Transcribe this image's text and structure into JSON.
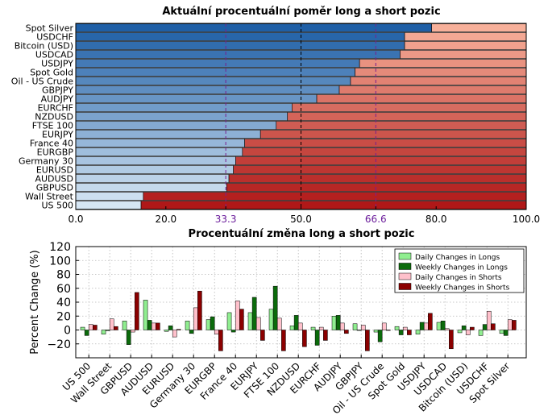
{
  "colors": {
    "long_dark": "#1f5fa6",
    "long_light": "#d6e6f4",
    "short_light": "#f7b09a",
    "short_dark": "#b01818",
    "ref_line_purple": "#7a1f8f",
    "ref_label_purple": "#6a1b9a",
    "daily_longs": "#90ee90",
    "weekly_longs": "#0b6b0b",
    "daily_shorts": "#ffc0cb",
    "weekly_shorts": "#8b0000"
  },
  "chart_data": [
    {
      "type": "bar",
      "orientation": "horizontal-stacked",
      "title": "Aktuální procentuální poměr long a short pozic",
      "categories": [
        "Spot Silver",
        "USDCHF",
        "Bitcoin (USD)",
        "USDCAD",
        "USDJPY",
        "Spot Gold",
        "Oil - US Crude",
        "GBPJPY",
        "AUDJPY",
        "EURCHF",
        "NZDUSD",
        "FTSE 100",
        "EURJPY",
        "France 40",
        "EURGBP",
        "Germany 30",
        "EURUSD",
        "AUDUSD",
        "GBPUSD",
        "Wall Street",
        "US 500"
      ],
      "series": [
        {
          "values": [
            79.0,
            73.0,
            73.0,
            72.0,
            63.0,
            62.0,
            61.0,
            58.5,
            53.5,
            48.0,
            47.0,
            44.5,
            41.0,
            37.5,
            37.0,
            35.5,
            35.0,
            34.0,
            33.5,
            15.0,
            14.5
          ]
        },
        {
          "values": [
            21.0,
            27.0,
            27.0,
            28.0,
            37.0,
            38.0,
            39.0,
            41.5,
            46.5,
            52.0,
            53.0,
            55.5,
            59.0,
            62.5,
            63.0,
            64.5,
            65.0,
            66.0,
            66.5,
            85.0,
            85.5
          ]
        }
      ],
      "xlim": [
        0,
        100
      ],
      "xticks": [
        "0.0",
        "20.0",
        "33.3",
        "50.0",
        "66.6",
        "80.0",
        "100.0"
      ],
      "reference_lines": [
        33.3,
        50.0,
        66.6
      ]
    },
    {
      "type": "bar",
      "title": "Procentuální změna long a short pozic",
      "ylabel": "Percent Change (%)",
      "ylim": [
        -40,
        120
      ],
      "yticks": [
        "120",
        "100",
        "80",
        "60",
        "40",
        "20",
        "0",
        "−20"
      ],
      "grid": true,
      "legend_position": "top-right",
      "categories": [
        "US 500",
        "Wall Street",
        "GBPUSD",
        "AUDUSD",
        "EURUSD",
        "Germany 30",
        "EURGBP",
        "France 40",
        "EURJPY",
        "FTSE 100",
        "NZDUSD",
        "EURCHF",
        "AUDJPY",
        "GBPJPY",
        "Oil - US Crude",
        "Spot Gold",
        "USDJPY",
        "USDCAD",
        "Bitcoin (USD)",
        "USDCHF",
        "Spot Silver"
      ],
      "series": [
        {
          "name": "Daily Changes in Longs",
          "values": [
            4,
            -6,
            13,
            43,
            -2,
            13,
            15,
            25,
            25,
            30,
            6,
            4,
            20,
            9,
            -3,
            5,
            -6,
            11,
            -4,
            -8,
            -5
          ]
        },
        {
          "name": "Weekly Changes in Longs",
          "values": [
            -8,
            -1,
            -21,
            14,
            6,
            -5,
            19,
            -3,
            47,
            63,
            21,
            -22,
            21,
            0,
            -17,
            -7,
            11,
            13,
            6,
            8,
            -8
          ]
        },
        {
          "name": "Daily Changes in Shorts",
          "values": [
            8,
            16,
            -3,
            10,
            -10,
            32,
            -6,
            42,
            18,
            17,
            10,
            4,
            10,
            7,
            10,
            4,
            10,
            2,
            -7,
            27,
            15
          ]
        },
        {
          "name": "Weekly Changes in Shorts",
          "values": [
            7,
            5,
            54,
            10,
            1,
            56,
            -30,
            30,
            -15,
            -30,
            -24,
            -15,
            -5,
            -30,
            0,
            -7,
            24,
            -27,
            4,
            9,
            14
          ]
        }
      ]
    }
  ]
}
